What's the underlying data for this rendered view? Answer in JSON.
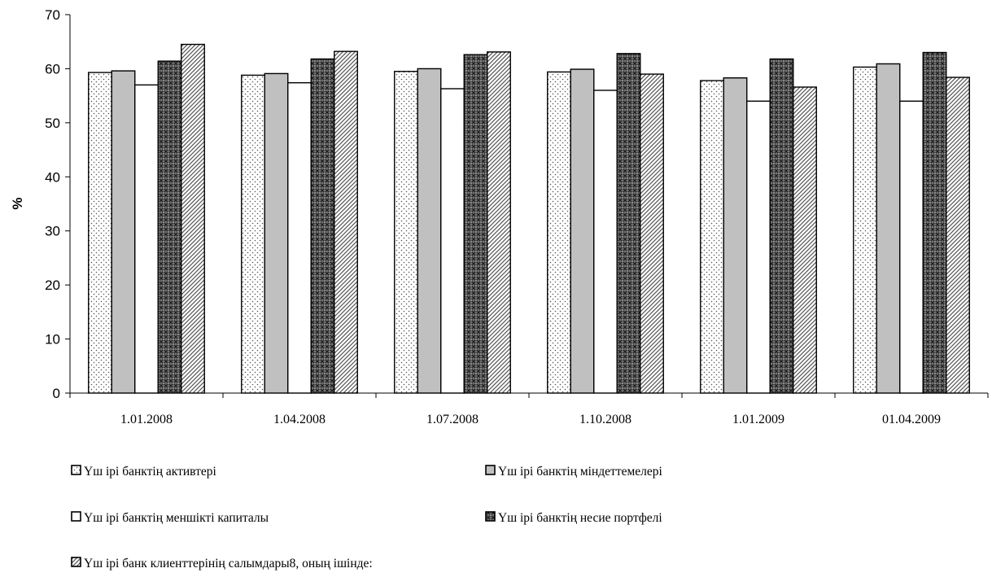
{
  "chart_data": {
    "type": "bar",
    "title": "",
    "xlabel": "",
    "ylabel": "%",
    "ylim": [
      0,
      70
    ],
    "yticks": [
      0,
      10,
      20,
      30,
      40,
      50,
      60,
      70
    ],
    "grid": false,
    "legend_position": "bottom",
    "categories": [
      "1.01.2008",
      "1.04.2008",
      "1.07.2008",
      "1.10.2008",
      "1.01.2009",
      "01.04.2009"
    ],
    "series": [
      {
        "name": "Үш ірі банктің активтері",
        "pattern": "dots",
        "values": [
          59.3,
          58.8,
          59.5,
          59.4,
          57.8,
          60.3
        ]
      },
      {
        "name": "Үш ірі банктің  міндеттемелері",
        "pattern": "solid-gray",
        "values": [
          59.6,
          59.1,
          60.0,
          59.9,
          58.3,
          60.9
        ]
      },
      {
        "name": "Үш ірі банктің меншікті капиталы",
        "pattern": "white",
        "values": [
          57.0,
          57.4,
          56.3,
          56.0,
          54.0,
          54.0
        ]
      },
      {
        "name": "Үш ірі банктің  несие портфелі",
        "pattern": "crosshatch",
        "values": [
          61.4,
          61.8,
          62.6,
          62.8,
          61.8,
          63.0
        ]
      },
      {
        "name": "Үш ірі банк клиенттерінің салымдары8, оның ішінде:",
        "pattern": "diagonal",
        "values": [
          64.5,
          63.2,
          63.1,
          59.0,
          56.6,
          58.4
        ]
      }
    ],
    "colors": {
      "solid-gray": "#c0c0c0",
      "crosshatch": "#7a7a7a",
      "stroke": "#000000"
    }
  }
}
